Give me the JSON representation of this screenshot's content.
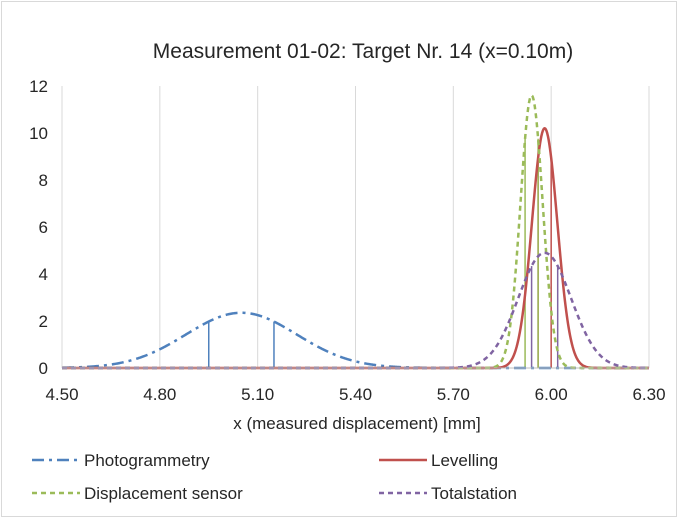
{
  "chart_data": {
    "type": "line",
    "title": "Measurement 01-02: Target Nr. 14 (x=0.10m)",
    "xlabel": "x (measured displacement) [mm]",
    "ylabel": "",
    "xlim": [
      4.5,
      6.3
    ],
    "ylim": [
      0,
      12
    ],
    "x_ticks": [
      4.5,
      4.8,
      5.1,
      5.4,
      5.7,
      6.0,
      6.3
    ],
    "x_tick_labels": [
      "4.50",
      "4.80",
      "5.10",
      "5.40",
      "5.70",
      "6.00",
      "6.30"
    ],
    "y_ticks": [
      0,
      2,
      4,
      6,
      8,
      10,
      12
    ],
    "y_tick_labels": [
      "0",
      "2",
      "4",
      "6",
      "8",
      "10",
      "12"
    ],
    "grid": "vertical",
    "legend_position": "bottom",
    "series": [
      {
        "name": "Photogrammetry",
        "color": "#4f81bd",
        "style": "dash-dot",
        "distribution": "normal",
        "mean": 5.05,
        "sd": 0.17,
        "peak": 2.35,
        "markers_x": [
          4.95,
          5.15
        ]
      },
      {
        "name": "Levelling",
        "color": "#c0504d",
        "style": "solid",
        "distribution": "normal",
        "mean": 5.98,
        "sd": 0.039,
        "peak": 10.2,
        "markers_x": [
          5.96,
          6.0
        ]
      },
      {
        "name": "Displacement sensor",
        "color": "#9bbb59",
        "style": "dashed",
        "distribution": "normal",
        "mean": 5.94,
        "sd": 0.034,
        "peak": 11.6,
        "markers_x": [
          5.92,
          5.96
        ]
      },
      {
        "name": "Totalstation",
        "color": "#8064a2",
        "style": "dashed",
        "distribution": "normal",
        "mean": 5.98,
        "sd": 0.081,
        "peak": 4.9,
        "markers_x": [
          5.94,
          6.02
        ]
      }
    ]
  }
}
